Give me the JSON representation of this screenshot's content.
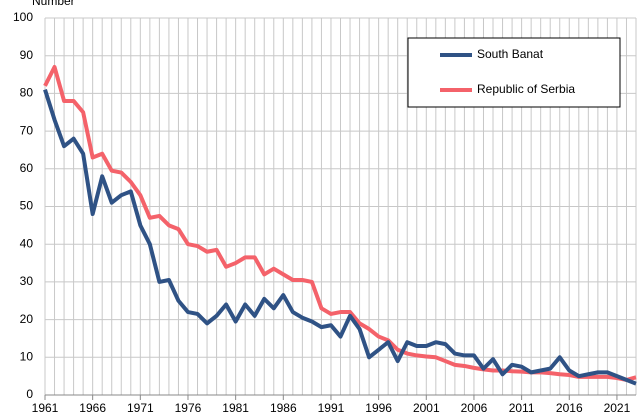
{
  "chart_data": {
    "type": "line",
    "y_label": "Number",
    "x": [
      1961,
      1962,
      1963,
      1964,
      1965,
      1966,
      1967,
      1968,
      1969,
      1970,
      1971,
      1972,
      1973,
      1974,
      1975,
      1976,
      1977,
      1978,
      1979,
      1980,
      1981,
      1982,
      1983,
      1984,
      1985,
      1986,
      1987,
      1988,
      1989,
      1990,
      1991,
      1992,
      1993,
      1994,
      1995,
      1996,
      1997,
      1998,
      1999,
      2000,
      2001,
      2002,
      2003,
      2004,
      2005,
      2006,
      2007,
      2008,
      2009,
      2010,
      2011,
      2012,
      2013,
      2014,
      2015,
      2016,
      2017,
      2018,
      2019,
      2020,
      2021,
      2022,
      2023
    ],
    "series": [
      {
        "name": "South Banat",
        "color": "#2f5285",
        "values": [
          81,
          73,
          66,
          68,
          64,
          48,
          58,
          51,
          53,
          54,
          45,
          40,
          30,
          30.5,
          25,
          22,
          21.5,
          19,
          21,
          24,
          19.5,
          24,
          21,
          25.5,
          23,
          26.5,
          22,
          20.5,
          19.5,
          18,
          18.5,
          15.5,
          21,
          17.5,
          10,
          12,
          14,
          9,
          14,
          13,
          13,
          14,
          13.5,
          11,
          10.5,
          10.5,
          7,
          9.5,
          5.5,
          8,
          7.5,
          6,
          6.5,
          7,
          10,
          6.5,
          5,
          5.5,
          6,
          6,
          5,
          4,
          3
        ]
      },
      {
        "name": "Republic of Serbia",
        "color": "#f4626a",
        "values": [
          82,
          87,
          78,
          78,
          75,
          63,
          64,
          59.5,
          59,
          56.5,
          53,
          47,
          47.5,
          45,
          44,
          40,
          39.5,
          38,
          38.5,
          34,
          35,
          36.5,
          36.5,
          32,
          33.5,
          32,
          30.5,
          30.5,
          30,
          23,
          21.5,
          22,
          22,
          19,
          17.5,
          15.5,
          14.5,
          12,
          11,
          10.5,
          10.2,
          10,
          9,
          8,
          7.7,
          7.2,
          6.8,
          6.5,
          6.5,
          6.3,
          6.2,
          6,
          6,
          5.8,
          5.5,
          5.3,
          4.8,
          4.8,
          4.8,
          4.8,
          4.5,
          4,
          4.7
        ]
      }
    ],
    "xlim": [
      1961,
      2023
    ],
    "xticks": [
      1961,
      1966,
      1971,
      1976,
      1981,
      1986,
      1991,
      1996,
      2001,
      2006,
      2011,
      2016,
      2021
    ],
    "ylim": [
      0,
      100
    ],
    "yticks": [
      0,
      10,
      20,
      30,
      40,
      50,
      60,
      70,
      80,
      90,
      100
    ],
    "grid": true
  }
}
